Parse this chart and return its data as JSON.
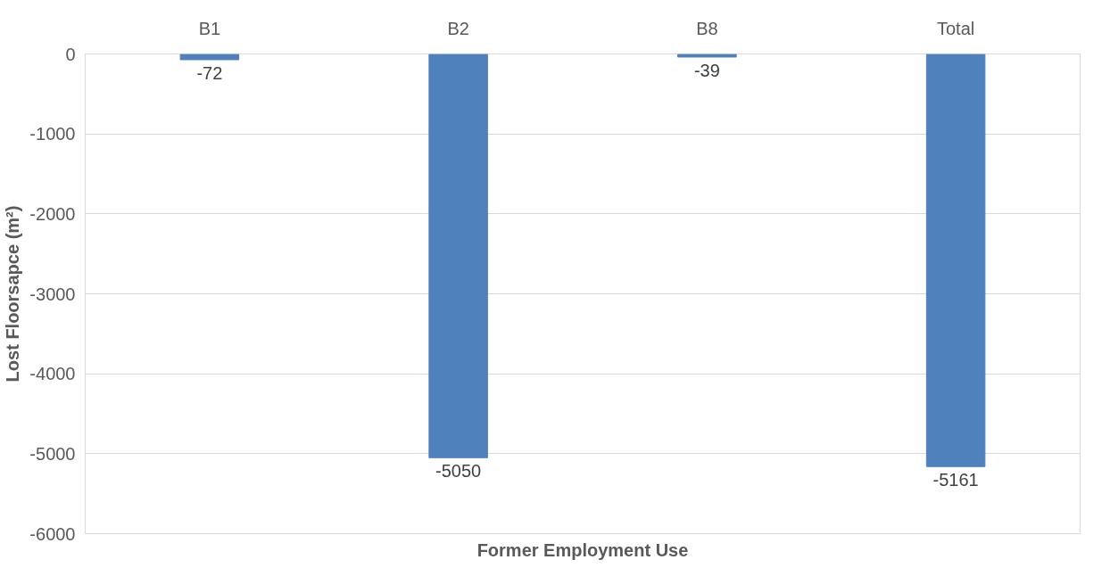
{
  "chart_data": {
    "type": "bar",
    "xlabel": "Former Employment Use",
    "ylabel": "Lost Floorsapce (m²)",
    "categories": [
      "B1",
      "B2",
      "B8",
      "Total"
    ],
    "values": [
      -72,
      -5050,
      -39,
      -5161
    ],
    "color": "#4f81bd",
    "ylim": [
      -6000,
      0
    ],
    "yticks": [
      -6000,
      -5000,
      -4000,
      -3000,
      -2000,
      -1000,
      0
    ],
    "grid": "y",
    "data_labels": true
  }
}
